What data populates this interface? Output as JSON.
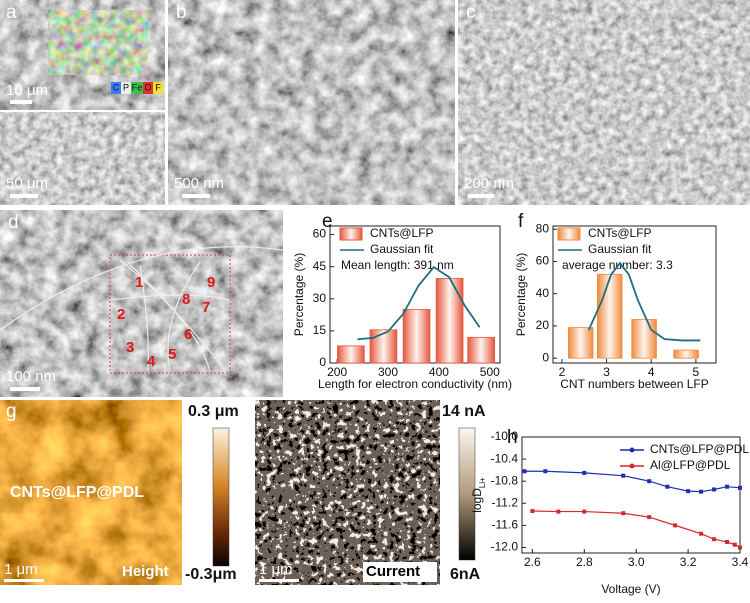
{
  "panels": {
    "a": {
      "letter": "a",
      "scale_top": "10 μm",
      "scale_bottom": "50 μm",
      "elements": [
        "C",
        "P",
        "Fe",
        "O",
        "F"
      ]
    },
    "b": {
      "letter": "b",
      "scale": "500 nm"
    },
    "c": {
      "letter": "c",
      "scale": "200 nm"
    },
    "d": {
      "letter": "d",
      "scale": "100 nm",
      "markers": [
        "1",
        "2",
        "3",
        "4",
        "5",
        "6",
        "7",
        "8",
        "9"
      ]
    },
    "g": {
      "letter": "g",
      "sample": "CNTs@LFP@PDL",
      "height_label": "Height",
      "current_label": "Current",
      "scale_1": "1 μm",
      "scale_2": "1 μm",
      "height_max": "0.3 μm",
      "height_min": "-0.3μm",
      "current_max": "14 nA",
      "current_min": "6nA"
    }
  },
  "chart_data": [
    {
      "type": "bar",
      "panel_label": "e",
      "x_label": "Length for electron conductivity (nm)",
      "y_label": "Percentage (%)",
      "annotation": "Mean length: 391 nm",
      "xlim": [
        186,
        520
      ],
      "ylim": [
        0,
        64
      ],
      "xticks": [
        200,
        300,
        400,
        500
      ],
      "yticks": [
        0,
        15,
        30,
        45,
        60
      ],
      "series": [
        {
          "name": "CNTs@LFP",
          "color": "#e4573d",
          "x": [
            227,
            291,
            356,
            421,
            483
          ],
          "values": [
            8,
            15.5,
            25,
            39.5,
            12
          ]
        },
        {
          "name": "Gaussian fit",
          "type": "line",
          "color": "#1e6e80",
          "x": [
            240,
            270,
            300,
            330,
            360,
            390,
            420,
            450,
            480
          ],
          "values": [
            11.1,
            11.7,
            14.7,
            23,
            36.2,
            44.8,
            40.1,
            27.1,
            16.7
          ]
        }
      ]
    },
    {
      "type": "bar",
      "panel_label": "f",
      "x_label": "CNT numbers between LFP",
      "y_label": "Percentage (%)",
      "annotation": "average number: 3.3",
      "xlim": [
        1.8,
        5.45
      ],
      "ylim": [
        -3,
        82
      ],
      "xticks": [
        2,
        3,
        4,
        5
      ],
      "yticks": [
        0,
        20,
        40,
        60,
        80
      ],
      "series": [
        {
          "name": "CNTs@LFP",
          "color": "#f08a3c",
          "x": [
            2.42,
            3.07,
            3.84,
            4.78
          ],
          "values": [
            19,
            52,
            24,
            5
          ]
        },
        {
          "name": "Gaussian fit",
          "type": "line",
          "color": "#1e6e80",
          "x": [
            2.6,
            2.9,
            3.1,
            3.3,
            3.5,
            3.7,
            4.0,
            4.3,
            4.7,
            5.1
          ],
          "values": [
            17.5,
            36,
            51.8,
            59,
            51.8,
            36,
            17.5,
            11.8,
            11,
            11
          ]
        }
      ]
    },
    {
      "type": "line",
      "panel_label": "h",
      "x_label": "Voltage (V)",
      "y_label": "logD",
      "y_label_sub": "Li+",
      "xlim": [
        2.56,
        3.4
      ],
      "ylim": [
        -12.1,
        -10.0
      ],
      "xticks": [
        2.6,
        2.8,
        {
          "value": 3,
          "label": "3.0"
        },
        3.2,
        3.4
      ],
      "yticks": [
        {
          "value": -12,
          "label": "-12.0"
        },
        -11.6,
        -11.2,
        -10.8,
        -10.4,
        {
          "value": -10,
          "label": "-10.0"
        }
      ],
      "series": [
        {
          "name": "CNTs@LFP@PDL",
          "color": "#1f2fb0",
          "x": [
            2.57,
            2.65,
            2.8,
            2.95,
            3.05,
            3.12,
            3.2,
            3.25,
            3.3,
            3.35,
            3.4
          ],
          "values": [
            -10.62,
            -10.62,
            -10.65,
            -10.7,
            -10.8,
            -10.9,
            -10.98,
            -10.99,
            -10.95,
            -10.9,
            -10.92
          ]
        },
        {
          "name": "Al@LFP@PDL",
          "color": "#d42a2a",
          "x": [
            2.6,
            2.7,
            2.8,
            2.95,
            3.05,
            3.15,
            3.25,
            3.3,
            3.35,
            3.38,
            3.4
          ],
          "values": [
            -11.34,
            -11.35,
            -11.35,
            -11.38,
            -11.45,
            -11.6,
            -11.75,
            -11.85,
            -11.9,
            -11.95,
            -12.0
          ]
        }
      ]
    }
  ]
}
